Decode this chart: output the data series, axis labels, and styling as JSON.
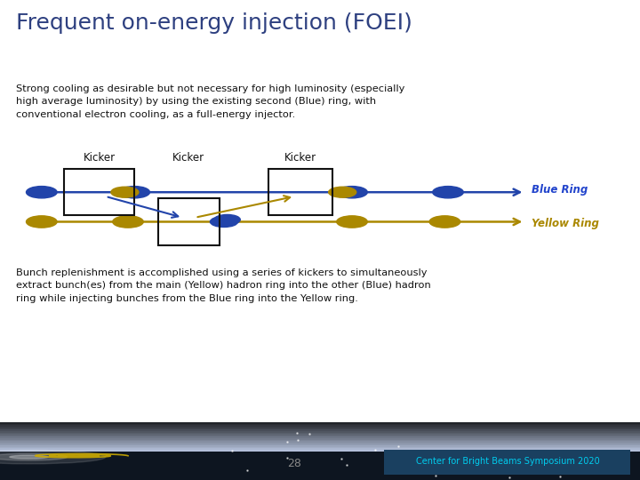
{
  "title": "Frequent on-energy injection (FOEI)",
  "title_color": "#2E4080",
  "title_fontsize": 18,
  "top_text": "Strong cooling as desirable but not necessary for high luminosity (especially\nhigh average luminosity) by using the existing second (Blue) ring, with\nconventional electron cooling, as a full-energy injector.",
  "bottom_text": "Bunch replenishment is accomplished using a series of kickers to simultaneously\nextract bunch(es) from the main (Yellow) hadron ring into the other (Blue) hadron\nring while injecting bunches from the Blue ring into the Yellow ring.",
  "page_number": "28",
  "footer_text": "Center for Bright Beams Symposium 2020",
  "footer_bg": "#1a4060",
  "footer_text_color": "#00ccee",
  "bg_color": "#ffffff",
  "text_color": "#111111",
  "blue_ring_color": "#2244aa",
  "yellow_ring_color": "#aa8800",
  "blue_ring_label": "Blue Ring",
  "yellow_ring_label": "Yellow Ring",
  "blue_label_color": "#2244cc",
  "yellow_label_color": "#aa8800",
  "kicker_label": "Kicker",
  "kicker_color": "#111111",
  "footer_dark_bg": "#0a0a18"
}
